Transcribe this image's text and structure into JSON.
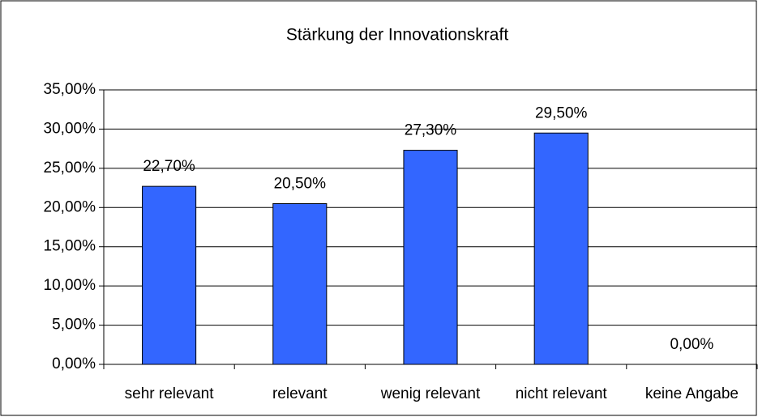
{
  "chart_data": {
    "type": "bar",
    "title": "Stärkung der Innovationskraft",
    "categories": [
      "sehr relevant",
      "relevant",
      "wenig relevant",
      "nicht relevant",
      "keine Angabe"
    ],
    "values": [
      22.7,
      20.5,
      27.3,
      29.5,
      0
    ],
    "value_labels": [
      "22,70%",
      "20,50%",
      "27,30%",
      "29,50%",
      "0,00%"
    ],
    "color": "#3366ff",
    "ylim": [
      0,
      35
    ],
    "yticks": [
      {
        "value": 0,
        "label": "0,00%"
      },
      {
        "value": 5,
        "label": "5,00%"
      },
      {
        "value": 10,
        "label": "10,00%"
      },
      {
        "value": 15,
        "label": "15,00%"
      },
      {
        "value": 20,
        "label": "20,00%"
      },
      {
        "value": 25,
        "label": "25,00%"
      },
      {
        "value": 30,
        "label": "30,00%"
      },
      {
        "value": 35,
        "label": "35,00%"
      }
    ],
    "grid": true
  }
}
